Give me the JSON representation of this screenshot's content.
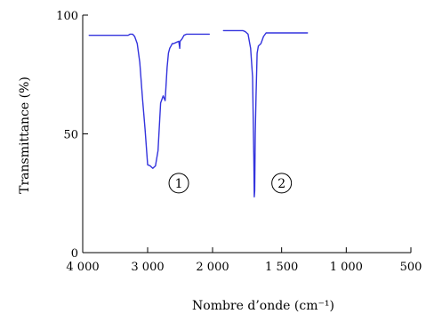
{
  "chart_data": {
    "type": "line",
    "xlabel": "Nombre d’onde (cm⁻¹)",
    "ylabel": "Transmittance (%)",
    "xlim": [
      4000,
      500
    ],
    "ylim": [
      0,
      100
    ],
    "x_ticks": [
      4000,
      3000,
      2000,
      1500,
      1000,
      500
    ],
    "x_tick_labels": [
      "4 000",
      "3 000",
      "2 000",
      "1 500",
      "1 000",
      "500"
    ],
    "y_ticks": [
      0,
      50,
      100
    ],
    "y_tick_labels": [
      "0",
      "50",
      "100"
    ],
    "x_axis_break": [
      2000,
      1500
    ],
    "grid": false,
    "line_color": "#3333dd",
    "series": [
      {
        "x": [
          3900,
          3300,
          3270,
          3230,
          3200,
          3160,
          3120,
          3080,
          3040,
          3000,
          2960,
          2920,
          2880,
          2840,
          2800,
          2760,
          2730,
          2700,
          2680,
          2660,
          2640,
          2620,
          2600,
          2560,
          2520,
          2505,
          2500,
          2470,
          2440,
          2400,
          2200,
          2050
        ],
        "y": [
          91.5,
          91.5,
          92,
          92,
          91,
          88,
          80,
          65,
          52,
          37,
          36.5,
          35.5,
          36.5,
          43,
          63,
          66,
          64,
          78,
          84,
          86,
          87,
          88,
          88,
          88.5,
          89,
          86,
          89,
          90,
          91.5,
          92,
          92,
          92
        ]
      },
      {
        "x": [
          1950,
          1800,
          1780,
          1760,
          1740,
          1725,
          1715,
          1712,
          1708,
          1704,
          1698,
          1690,
          1680,
          1660,
          1640,
          1620,
          1500,
          1300
        ],
        "y": [
          93.5,
          93.5,
          93,
          92,
          86,
          74,
          40,
          23.5,
          26,
          50,
          66,
          84,
          87,
          88,
          91,
          92.5,
          92.5,
          92.5
        ]
      }
    ],
    "annotations": [
      {
        "label": "1",
        "x": 2520,
        "y": 30
      },
      {
        "label": "2",
        "x": 1500,
        "y": 30
      }
    ]
  }
}
